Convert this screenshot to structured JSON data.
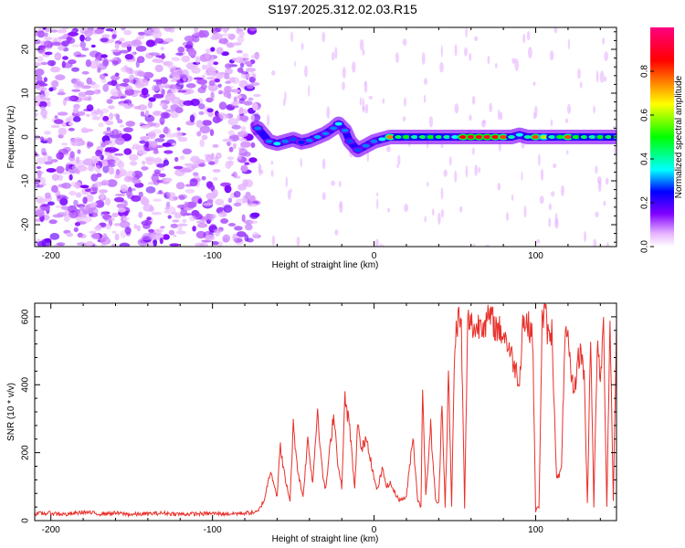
{
  "title": "S197.2025.312.02.03.R15",
  "chart_data": [
    {
      "type": "heatmap",
      "title": "S197.2025.312.02.03.R15",
      "xlabel": "Height of straight line (km)",
      "ylabel": "Frequency (Hz)",
      "xlim": [
        -210,
        150
      ],
      "ylim": [
        -25,
        25
      ],
      "x_ticks": [
        -200,
        -100,
        0,
        100
      ],
      "x_tick_labels": [
        "-200",
        "-100",
        "0",
        "100"
      ],
      "y_ticks": [
        -20,
        -10,
        0,
        10,
        20
      ],
      "y_tick_labels": [
        "-20",
        "-10",
        "0",
        "10",
        "20"
      ],
      "colorbar": {
        "label": "Normalized spectral amplitude",
        "range": [
          0,
          1
        ],
        "ticks": [
          0.0,
          0.2,
          0.4,
          0.6,
          0.8
        ],
        "tick_labels": [
          "0.0",
          "0.2",
          "0.4",
          "0.6",
          "0.8"
        ],
        "colors": [
          "#ffffff",
          "#e6b3ff",
          "#8000ff",
          "#0000ff",
          "#00ffff",
          "#00ff00",
          "#ffff00",
          "#ff8000",
          "#ff0000",
          "#ff0080"
        ]
      },
      "noise_region_x": [
        -210,
        -72
      ],
      "ridge_points": [
        {
          "x": -72,
          "f": 2,
          "v": 0.3
        },
        {
          "x": -65,
          "f": -1,
          "v": 0.3
        },
        {
          "x": -60,
          "f": -1.5,
          "v": 0.35
        },
        {
          "x": -55,
          "f": -1,
          "v": 0.3
        },
        {
          "x": -50,
          "f": -0.5,
          "v": 0.28
        },
        {
          "x": -45,
          "f": -1.2,
          "v": 0.26
        },
        {
          "x": -40,
          "f": -0.8,
          "v": 0.3
        },
        {
          "x": -35,
          "f": 0,
          "v": 0.32
        },
        {
          "x": -30,
          "f": 0.8,
          "v": 0.3
        },
        {
          "x": -25,
          "f": 2,
          "v": 0.3
        },
        {
          "x": -22,
          "f": 3,
          "v": 0.35
        },
        {
          "x": -18,
          "f": 1.5,
          "v": 0.3
        },
        {
          "x": -15,
          "f": -1,
          "v": 0.28
        },
        {
          "x": -10,
          "f": -3,
          "v": 0.28
        },
        {
          "x": -5,
          "f": -2,
          "v": 0.3
        },
        {
          "x": 0,
          "f": -1,
          "v": 0.3
        },
        {
          "x": 5,
          "f": -0.5,
          "v": 0.35
        },
        {
          "x": 10,
          "f": 0,
          "v": 0.75
        },
        {
          "x": 15,
          "f": 0,
          "v": 0.45
        },
        {
          "x": 20,
          "f": 0,
          "v": 0.5
        },
        {
          "x": 25,
          "f": 0,
          "v": 0.4
        },
        {
          "x": 30,
          "f": 0,
          "v": 0.45
        },
        {
          "x": 35,
          "f": 0,
          "v": 0.5
        },
        {
          "x": 40,
          "f": 0,
          "v": 0.45
        },
        {
          "x": 45,
          "f": 0,
          "v": 0.4
        },
        {
          "x": 50,
          "f": 0,
          "v": 0.35
        },
        {
          "x": 55,
          "f": 0,
          "v": 0.85
        },
        {
          "x": 60,
          "f": 0,
          "v": 0.9
        },
        {
          "x": 65,
          "f": 0,
          "v": 0.88
        },
        {
          "x": 70,
          "f": 0,
          "v": 0.9
        },
        {
          "x": 75,
          "f": 0,
          "v": 0.85
        },
        {
          "x": 80,
          "f": 0,
          "v": 0.8
        },
        {
          "x": 85,
          "f": 0,
          "v": 0.4
        },
        {
          "x": 90,
          "f": 0.5,
          "v": 0.35
        },
        {
          "x": 95,
          "f": 0,
          "v": 0.4
        },
        {
          "x": 100,
          "f": 0,
          "v": 0.8
        },
        {
          "x": 105,
          "f": 0,
          "v": 0.6
        },
        {
          "x": 110,
          "f": 0,
          "v": 0.4
        },
        {
          "x": 115,
          "f": 0,
          "v": 0.5
        },
        {
          "x": 120,
          "f": 0,
          "v": 0.8
        },
        {
          "x": 125,
          "f": 0,
          "v": 0.5
        },
        {
          "x": 130,
          "f": 0,
          "v": 0.45
        },
        {
          "x": 135,
          "f": 0,
          "v": 0.4
        },
        {
          "x": 140,
          "f": 0,
          "v": 0.5
        },
        {
          "x": 145,
          "f": 0,
          "v": 0.45
        },
        {
          "x": 150,
          "f": 0,
          "v": 0.4
        }
      ]
    },
    {
      "type": "line",
      "xlabel": "Height of straight line (km)",
      "ylabel": "SNR (10 * v/v)",
      "xlim": [
        -210,
        150
      ],
      "ylim": [
        0,
        640
      ],
      "x_ticks": [
        -200,
        -100,
        0,
        100
      ],
      "x_tick_labels": [
        "-200",
        "-100",
        "0",
        "100"
      ],
      "y_ticks": [
        0,
        200,
        400,
        600
      ],
      "y_tick_labels": [
        "0",
        "200",
        "400",
        "600"
      ],
      "line_color": "#e8302a",
      "series": [
        {
          "name": "SNR",
          "x": [
            -210,
            -200,
            -190,
            -180,
            -170,
            -160,
            -150,
            -140,
            -130,
            -120,
            -110,
            -100,
            -90,
            -80,
            -72,
            -68,
            -64,
            -60,
            -58,
            -55,
            -52,
            -50,
            -47,
            -44,
            -41,
            -38,
            -35,
            -32,
            -30,
            -28,
            -25,
            -22,
            -20,
            -18,
            -15,
            -12,
            -10,
            -8,
            -5,
            -2,
            0,
            2,
            5,
            8,
            10,
            13,
            16,
            20,
            24,
            27,
            29,
            30,
            32,
            35,
            38,
            40,
            42,
            44,
            46,
            48,
            50,
            52,
            54,
            56,
            58,
            60,
            63,
            66,
            69,
            72,
            75,
            78,
            80,
            82,
            84,
            86,
            88,
            90,
            92,
            94,
            96,
            98,
            100,
            102,
            104,
            106,
            108,
            110,
            113,
            116,
            118,
            120,
            122,
            124,
            126,
            128,
            130,
            132,
            134,
            136,
            138,
            140,
            142,
            144,
            146,
            148,
            150
          ],
          "y": [
            20,
            22,
            18,
            25,
            20,
            22,
            18,
            20,
            22,
            19,
            20,
            21,
            20,
            22,
            25,
            60,
            150,
            70,
            220,
            120,
            60,
            280,
            140,
            70,
            240,
            110,
            330,
            140,
            90,
            180,
            320,
            150,
            100,
            360,
            270,
            90,
            300,
            200,
            250,
            180,
            120,
            90,
            150,
            100,
            110,
            80,
            60,
            70,
            250,
            60,
            40,
            400,
            70,
            280,
            60,
            50,
            360,
            40,
            430,
            45,
            530,
            600,
            570,
            40,
            590,
            580,
            560,
            590,
            580,
            600,
            570,
            560,
            550,
            530,
            500,
            470,
            440,
            410,
            590,
            580,
            570,
            560,
            30,
            40,
            590,
            610,
            530,
            560,
            120,
            150,
            550,
            520,
            420,
            380,
            470,
            500,
            430,
            50,
            560,
            40,
            520,
            410,
            570,
            40,
            600,
            60,
            580
          ]
        }
      ]
    }
  ]
}
